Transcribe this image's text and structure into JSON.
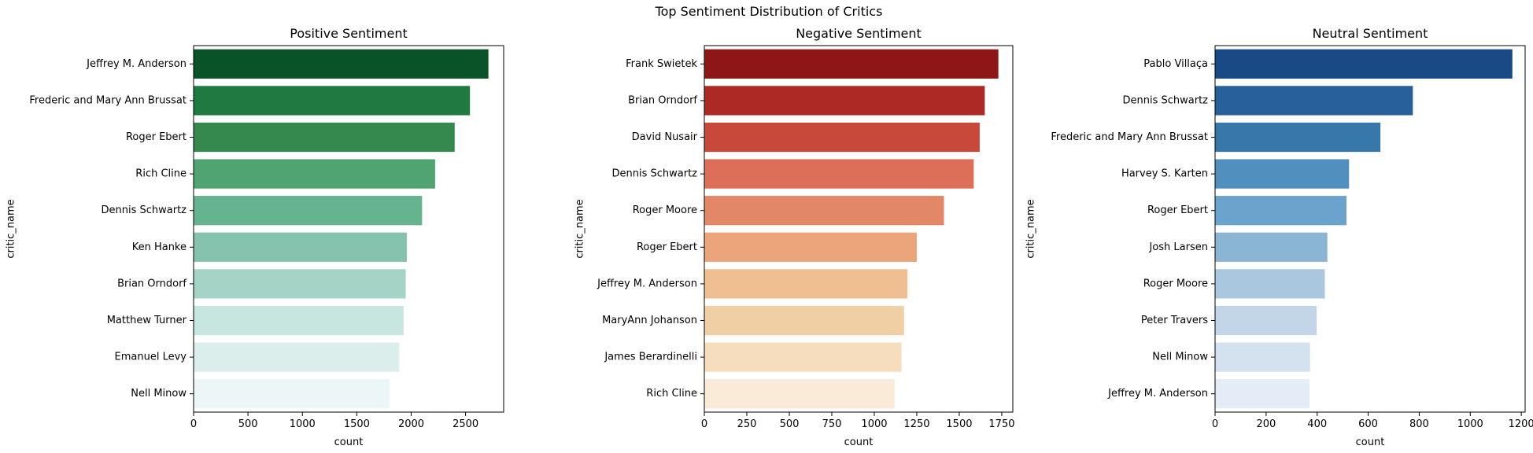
{
  "figure": {
    "suptitle": "Top Sentiment Distribution of Critics"
  },
  "chart_data": [
    {
      "type": "bar",
      "orientation": "horizontal",
      "title": "Positive Sentiment",
      "xlabel": "count",
      "ylabel": "critic_name",
      "xlim": [
        0,
        2850
      ],
      "xticks": [
        0,
        500,
        1000,
        1500,
        2000,
        2500
      ],
      "categories": [
        "Jeffrey M. Anderson",
        "Frederic and Mary Ann Brussat",
        "Roger Ebert",
        "Rich Cline",
        "Dennis Schwartz",
        "Ken Hanke",
        "Brian Orndorf",
        "Matthew Turner",
        "Emanuel Levy",
        "Nell Minow"
      ],
      "values": [
        2710,
        2540,
        2400,
        2220,
        2100,
        1960,
        1950,
        1930,
        1890,
        1800
      ],
      "colors": [
        "#0a5227",
        "#1e7a3f",
        "#35894f",
        "#4fa472",
        "#66b390",
        "#86c3ae",
        "#a5d4c7",
        "#c6e6df",
        "#dbeeec",
        "#ecf6f8"
      ],
      "grid": false,
      "legend": "none"
    },
    {
      "type": "bar",
      "orientation": "horizontal",
      "title": "Negative Sentiment",
      "xlabel": "count",
      "ylabel": "critic_name",
      "xlim": [
        0,
        1815
      ],
      "xticks": [
        0,
        250,
        500,
        750,
        1000,
        1250,
        1500,
        1750
      ],
      "categories": [
        "Frank Swietek",
        "Brian Orndorf",
        "David Nusair",
        "Dennis Schwartz",
        "Roger Moore",
        "Roger Ebert",
        "Jeffrey M. Anderson",
        "MaryAnn Johanson",
        "James Berardinelli",
        "Rich Cline"
      ],
      "values": [
        1730,
        1650,
        1620,
        1585,
        1410,
        1250,
        1195,
        1175,
        1160,
        1120
      ],
      "colors": [
        "#8e1616",
        "#ac2925",
        "#c8483a",
        "#dd6e57",
        "#e38866",
        "#eca57b",
        "#efbf92",
        "#f1cfa5",
        "#f5ddbd",
        "#faebd8"
      ],
      "grid": false,
      "legend": "none"
    },
    {
      "type": "bar",
      "orientation": "horizontal",
      "title": "Neutral Sentiment",
      "xlabel": "count",
      "ylabel": "critic_name",
      "xlim": [
        0,
        1215
      ],
      "xticks": [
        0,
        200,
        400,
        600,
        800,
        1000,
        1200
      ],
      "categories": [
        "Pablo Villaça",
        "Dennis Schwartz",
        "Frederic and Mary Ann Brussat",
        "Harvey S. Karten",
        "Roger Ebert",
        "Josh Larsen",
        "Roger Moore",
        "Peter Travers",
        "Nell Minow",
        "Jeffrey M. Anderson"
      ],
      "values": [
        1165,
        775,
        648,
        525,
        515,
        440,
        430,
        398,
        372,
        370
      ],
      "colors": [
        "#1a4a86",
        "#27609b",
        "#3877aa",
        "#518fbf",
        "#6aa3cb",
        "#8ab6d3",
        "#a9c8e0",
        "#c2d6e8",
        "#d4e2f0",
        "#e3ecf7"
      ],
      "grid": false,
      "legend": "none"
    }
  ]
}
